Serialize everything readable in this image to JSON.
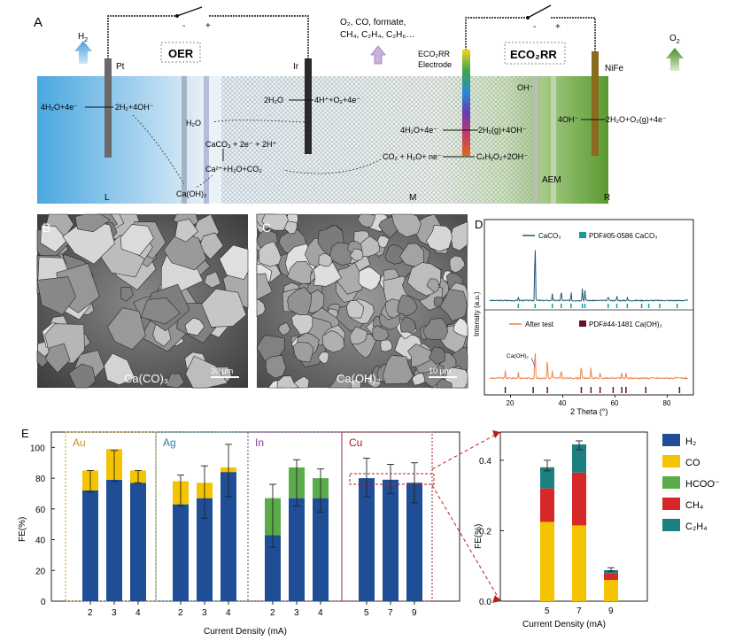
{
  "panel_labels": {
    "a": "A",
    "b": "B",
    "c": "C",
    "d": "D",
    "e": "E"
  },
  "colors": {
    "electrolyte_left": "#4aa8e0",
    "electrolyte_right": "#6aa83a",
    "anode_rod": "#5a5a5a",
    "ir_rod": "#2e2e2e",
    "nife_rod": "#8a6a1c",
    "h2": "#1f4e96",
    "co": "#f5c400",
    "hcooh": "#5aab4a",
    "ch4": "#d62828",
    "c2h4": "#1e7f7f",
    "xrd_caco3": "#1d5a74",
    "xrd_after": "#f0844a",
    "xrd_ref1": "#1a9a9a",
    "xrd_ref2": "#6a0f2a"
  },
  "schematic": {
    "gas_h2": "H",
    "gas_h2_sub": "2",
    "gas_o2": "O",
    "gas_o2_sub": "2",
    "products_line1": "O₂, CO, formate,",
    "products_line2": "CH₄, C₂H₄, C₂H₆…",
    "pt": "Pt",
    "ir": "Ir",
    "nife": "NiFe",
    "oer": "OER",
    "eco2rr": "ECO₂RR",
    "electrode_line1": "ECO₂RR",
    "electrode_line2": "Electrode",
    "oh": "OH⁻",
    "rxn_left_1": "4H₂O+4e⁻",
    "rxn_left_2": "2H₂+4OH⁻",
    "rxn_h2o": "H₂O",
    "rxn_ox_1": "2H₂O",
    "rxn_ox_2": "4H⁺+O₂+4e⁻",
    "rxn_caco3": "CaCO₃ + 2e⁻ + 2H⁺",
    "rxn_ca": "Ca²⁺+H₂O+CO₂",
    "rxn_caoh": "Ca(OH)₂",
    "rxn_mid_1": "4H₂O+4e⁻",
    "rxn_mid_2": "2H₂(g)+4OH⁻",
    "rxn_co2": "CO₂ + H₂O+ ne⁻",
    "rxn_c": "CₓHᵧO₂+2OH⁻",
    "rxn_right_1": "4OH⁻",
    "rxn_right_2": "2H₂O+O₂(g)+4e⁻",
    "aem": "AEM",
    "zone_l": "L",
    "zone_m": "M",
    "zone_r": "R",
    "switch_minus": "-",
    "switch_plus": "+"
  },
  "sem": {
    "b_label": "Ca(CO)₃",
    "b_scale": "20 µm",
    "c_label": "Ca(OH)₂",
    "c_scale": "10 µm"
  },
  "xrd": {
    "legend_top_1": "CaCO₃",
    "legend_top_2": "PDF#05-0586 CaCO₃",
    "legend_bot_1": "After test",
    "legend_bot_2": "PDF#44-1481 Ca(OH)₂",
    "ylabel": "Intensity (a.u.)",
    "xlabel": "2 Theta (°)",
    "annotation": "Ca(OH)₂",
    "ticks": [
      "20",
      "40",
      "60",
      "80"
    ]
  },
  "chart_data": [
    {
      "type": "bar",
      "title": "",
      "xlabel": "Current Density (mA)",
      "ylabel": "FE(%)",
      "ylim": [
        0,
        110
      ],
      "yticks": [
        "0",
        "20",
        "40",
        "60",
        "80",
        "100"
      ],
      "groups": [
        {
          "name": "Au",
          "color": "#c79a18",
          "categories": [
            "2",
            "3",
            "4"
          ],
          "series": [
            {
              "name": "H₂",
              "values": [
                72,
                79,
                77
              ]
            },
            {
              "name": "CO",
              "values": [
                13,
                20,
                8
              ]
            },
            {
              "name": "HCOO⁻",
              "values": [
                0,
                0,
                0
              ]
            }
          ],
          "err": [
            [
              71,
              85
            ],
            [
              78,
              98
            ],
            [
              77,
              85
            ]
          ]
        },
        {
          "name": "Ag",
          "color": "#2f7f9a",
          "categories": [
            "2",
            "3",
            "4"
          ],
          "series": [
            {
              "name": "H₂",
              "values": [
                63,
                67,
                84
              ]
            },
            {
              "name": "CO",
              "values": [
                15,
                10,
                3
              ]
            },
            {
              "name": "HCOO⁻",
              "values": [
                0,
                0,
                0
              ]
            }
          ],
          "err": [
            [
              62,
              82
            ],
            [
              54,
              88
            ],
            [
              68,
              102
            ]
          ]
        },
        {
          "name": "In",
          "color": "#7a3a8a",
          "categories": [
            "2",
            "3",
            "4"
          ],
          "series": [
            {
              "name": "H₂",
              "values": [
                43,
                67,
                67
              ]
            },
            {
              "name": "CO",
              "values": [
                0,
                0,
                0
              ]
            },
            {
              "name": "HCOO⁻",
              "values": [
                24,
                20,
                13
              ]
            }
          ],
          "err": [
            [
              35,
              76
            ],
            [
              62,
              92
            ],
            [
              58,
              86
            ]
          ]
        },
        {
          "name": "Cu",
          "color": "#9e1c2a",
          "categories": [
            "5",
            "7",
            "9"
          ],
          "series": [
            {
              "name": "H₂",
              "values": [
                80,
                79,
                77
              ]
            },
            {
              "name": "CO",
              "values": [
                0,
                0,
                0
              ]
            },
            {
              "name": "HCOO⁻",
              "values": [
                0,
                0,
                0
              ]
            }
          ],
          "err": [
            [
              68,
              93
            ],
            [
              70,
              89
            ],
            [
              64,
              90
            ]
          ]
        }
      ]
    },
    {
      "type": "bar",
      "title": "",
      "xlabel": "Current Density (mA)",
      "ylabel": "FE(%)",
      "ylim": [
        0,
        0.48
      ],
      "yticks": [
        "0.0",
        "0.2",
        "0.4"
      ],
      "categories": [
        "5",
        "7",
        "9"
      ],
      "series": [
        {
          "name": "CO",
          "values": [
            0.225,
            0.215,
            0.06
          ]
        },
        {
          "name": "CH₄",
          "values": [
            0.095,
            0.15,
            0.02
          ]
        },
        {
          "name": "C₂H₄",
          "values": [
            0.06,
            0.08,
            0.008
          ]
        }
      ],
      "err": [
        [
          0.37,
          0.4
        ],
        [
          0.43,
          0.455
        ],
        [
          0.085,
          0.095
        ]
      ]
    }
  ],
  "legend": {
    "h2": "H₂",
    "co": "CO",
    "hcooh": "HCOO⁻",
    "ch4": "CH₄",
    "c2h4": "C₂H₄"
  }
}
